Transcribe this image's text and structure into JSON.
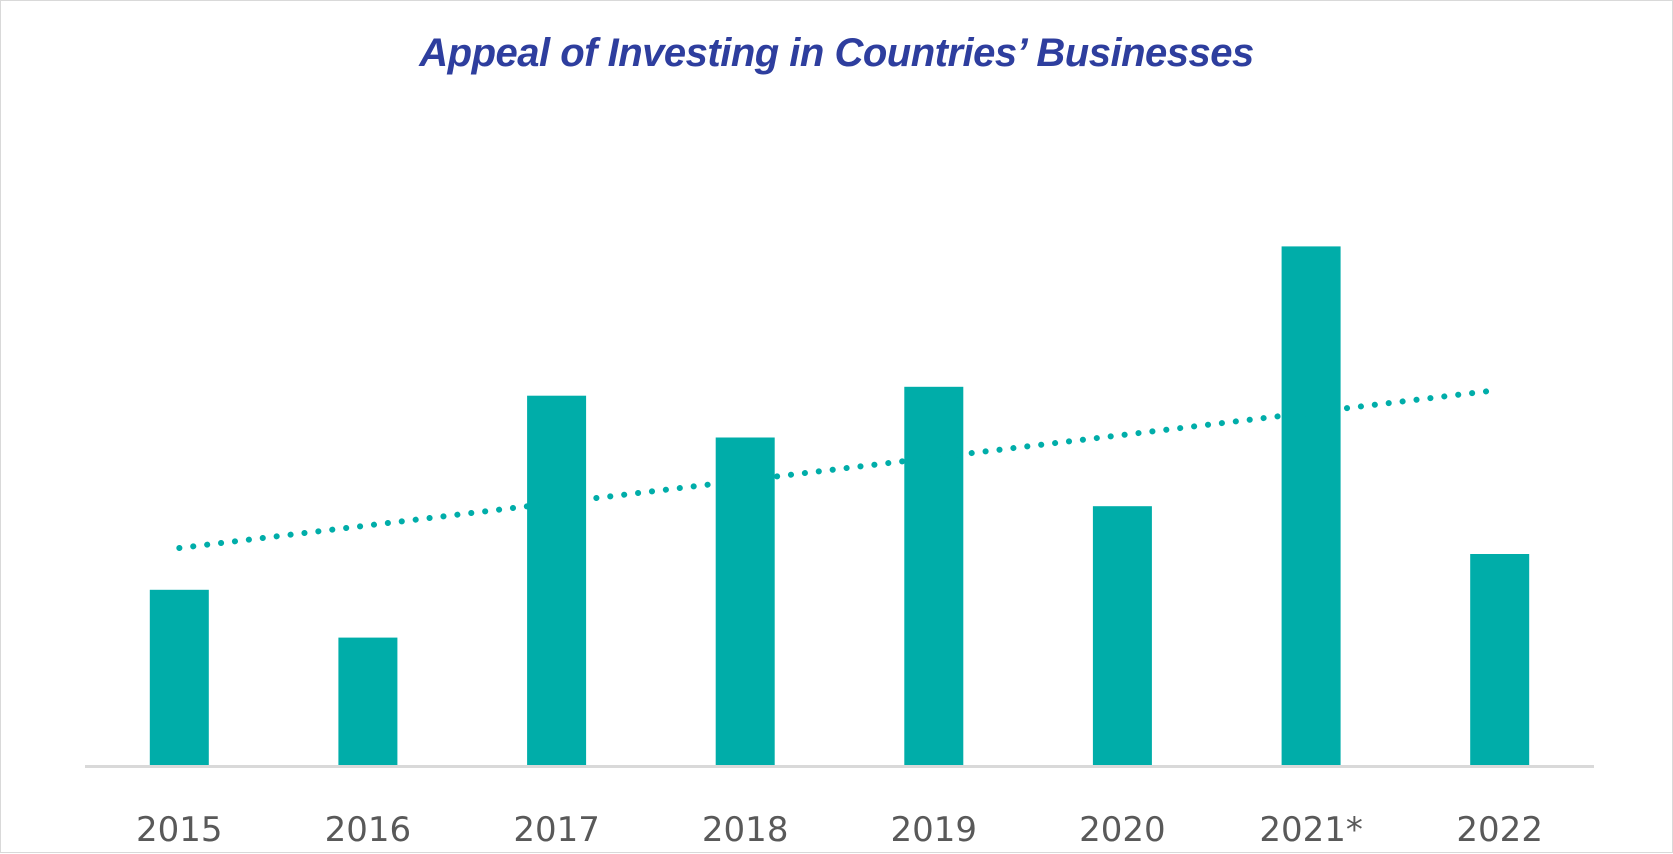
{
  "chart_data": {
    "type": "bar",
    "title": "Appeal of Investing in Countries’ Businesses",
    "categories": [
      "2015",
      "2016",
      "2017",
      "2018",
      "2019",
      "2020",
      "2021*",
      "2022"
    ],
    "values": [
      29.5,
      21.5,
      62,
      55,
      63.5,
      43.5,
      87,
      35.5
    ],
    "xlabel": "",
    "ylabel": "",
    "ylim": [
      0,
      108
    ],
    "grid": false,
    "trendline": {
      "type": "linear",
      "style": "dotted",
      "start": 36.5,
      "end": 63
    }
  },
  "colors": {
    "bar": "#00ADA9",
    "trendline": "#00ADA9",
    "title": "#2E3E9E",
    "axis": "#D9D9D9",
    "tick_label": "#595959"
  }
}
